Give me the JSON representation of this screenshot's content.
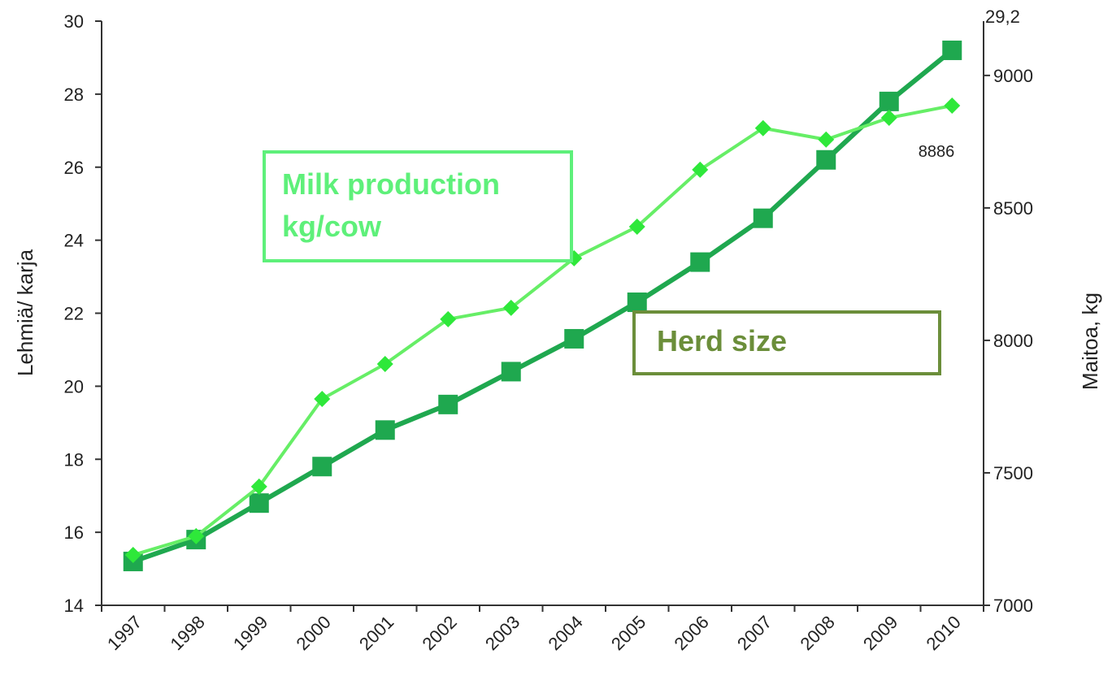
{
  "chart_data": {
    "type": "line",
    "categories": [
      "1997",
      "1998",
      "1999",
      "2000",
      "2001",
      "2002",
      "2003",
      "2004",
      "2005",
      "2006",
      "2007",
      "2008",
      "2009",
      "2010"
    ],
    "series": [
      {
        "name": "Herd size",
        "color": "#1fa84f",
        "box_color": "#6b8e3a",
        "marker": "square",
        "axis": "y",
        "values": [
          15.2,
          15.8,
          16.8,
          17.8,
          18.8,
          19.5,
          20.4,
          21.3,
          22.3,
          23.4,
          24.6,
          26.2,
          27.8,
          29.2
        ]
      },
      {
        "name": "Milk production kg/cow",
        "color": "#66ee66",
        "marker_color": "#2ee83a",
        "box_color": "#5ef07a",
        "marker": "diamond",
        "axis": "y2",
        "values": [
          7190,
          7261,
          7448,
          7779,
          7911,
          8080,
          8123,
          8310,
          8429,
          8644,
          8801,
          8758,
          8840,
          8886
        ]
      }
    ],
    "ylabel": "Lehmiä/ karja",
    "y2label": "Maitoa, kg",
    "ylim": [
      14,
      30
    ],
    "yticks": [
      14,
      16,
      18,
      20,
      22,
      24,
      26,
      28,
      30
    ],
    "y2lim": [
      7000,
      9205
    ],
    "y2ticks": [
      7000,
      7500,
      8000,
      8500,
      9000
    ],
    "annotations": [
      "29,2",
      "8886"
    ]
  }
}
